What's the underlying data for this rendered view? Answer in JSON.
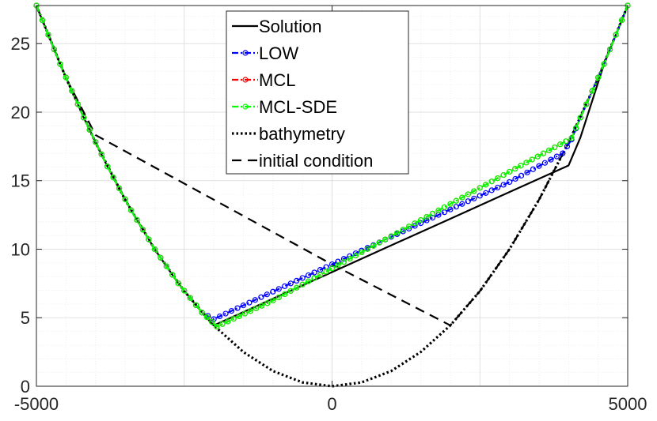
{
  "chart_data": {
    "type": "line",
    "title": "",
    "xlabel": "",
    "ylabel": "",
    "xlim": [
      -5000,
      5000
    ],
    "ylim": [
      0,
      27.78
    ],
    "xticks": [
      -5000,
      0,
      5000
    ],
    "xtick_labels": [
      "-5000",
      "0",
      "5000"
    ],
    "yticks": [
      0,
      5,
      10,
      15,
      20,
      25
    ],
    "ytick_labels": [
      "0",
      "5",
      "10",
      "15",
      "20",
      "25"
    ],
    "grid": true,
    "minor_grid": true,
    "legend_position": "top-center",
    "series": [
      {
        "name": "Solution",
        "color": "#000000",
        "style": "solid",
        "marker": "none",
        "x": [
          -5000,
          -4600,
          -4200,
          -3800,
          -3400,
          -3000,
          -2600,
          -2200,
          -2000,
          -1000,
          0,
          1000,
          2000,
          3000,
          4000,
          4200,
          4600,
          5000
        ],
        "y": [
          27.78,
          23.51,
          19.6,
          16.04,
          12.85,
          10.0,
          7.51,
          5.38,
          4.44,
          6.39,
          8.33,
          10.28,
          12.22,
          14.17,
          16.11,
          18.15,
          23.51,
          27.78
        ]
      },
      {
        "name": "LOW",
        "color": "#0000ff",
        "style": "dashdot",
        "marker": "circle",
        "x": [
          -5000,
          -4600,
          -4200,
          -3800,
          -3400,
          -3000,
          -2600,
          -2200,
          -2000,
          -1000,
          0,
          1000,
          2000,
          3000,
          3900,
          4050,
          4200,
          4600,
          5000
        ],
        "y": [
          27.78,
          23.51,
          19.6,
          16.04,
          12.85,
          10.0,
          7.51,
          5.38,
          4.9,
          6.9,
          8.9,
          10.9,
          12.9,
          14.9,
          17.0,
          18.0,
          19.6,
          23.51,
          27.78
        ]
      },
      {
        "name": "MCL",
        "color": "#ff0000",
        "style": "dashdot",
        "marker": "circle",
        "x": [
          -5000,
          -4600,
          -4200,
          -3800,
          -3400,
          -3000,
          -2600,
          -2200,
          -1950,
          -1000,
          0,
          1000,
          2000,
          3000,
          4050,
          4200,
          4600,
          5000
        ],
        "y": [
          27.78,
          23.51,
          19.6,
          16.04,
          12.85,
          10.0,
          7.51,
          5.38,
          4.35,
          6.25,
          8.6,
          10.95,
          13.3,
          15.65,
          18.1,
          19.6,
          23.51,
          27.78
        ]
      },
      {
        "name": "MCL-SDE",
        "color": "#00ff00",
        "style": "dashdot",
        "marker": "circle",
        "x": [
          -5000,
          -4600,
          -4200,
          -3800,
          -3400,
          -3000,
          -2600,
          -2200,
          -1950,
          -1000,
          0,
          1000,
          2000,
          3000,
          4050,
          4200,
          4600,
          5000
        ],
        "y": [
          27.78,
          23.51,
          19.6,
          16.04,
          12.85,
          10.0,
          7.51,
          5.38,
          4.35,
          6.25,
          8.6,
          10.95,
          13.3,
          15.65,
          18.1,
          19.6,
          23.51,
          27.78
        ]
      },
      {
        "name": "bathymetry",
        "color": "#000000",
        "style": "dotted",
        "marker": "none",
        "x": [
          -5000,
          -4500,
          -4000,
          -3500,
          -3000,
          -2500,
          -2000,
          -1500,
          -1000,
          -500,
          0,
          500,
          1000,
          1500,
          2000,
          2500,
          3000,
          3500,
          4000,
          4500,
          5000
        ],
        "y": [
          27.78,
          22.5,
          17.78,
          13.61,
          10.0,
          6.94,
          4.44,
          2.5,
          1.11,
          0.28,
          0.0,
          0.28,
          1.11,
          2.5,
          4.44,
          6.94,
          10.0,
          13.61,
          17.78,
          22.5,
          27.78
        ]
      },
      {
        "name": "initial condition",
        "color": "#000000",
        "style": "dashed",
        "marker": "none",
        "x": [
          -5000,
          -4500,
          -4000,
          0,
          2000,
          2500,
          3000,
          3500,
          4000,
          4500,
          5000
        ],
        "y": [
          27.78,
          22.5,
          18.33,
          8.89,
          4.44,
          6.94,
          10.0,
          13.61,
          17.78,
          22.5,
          27.78
        ]
      }
    ]
  }
}
